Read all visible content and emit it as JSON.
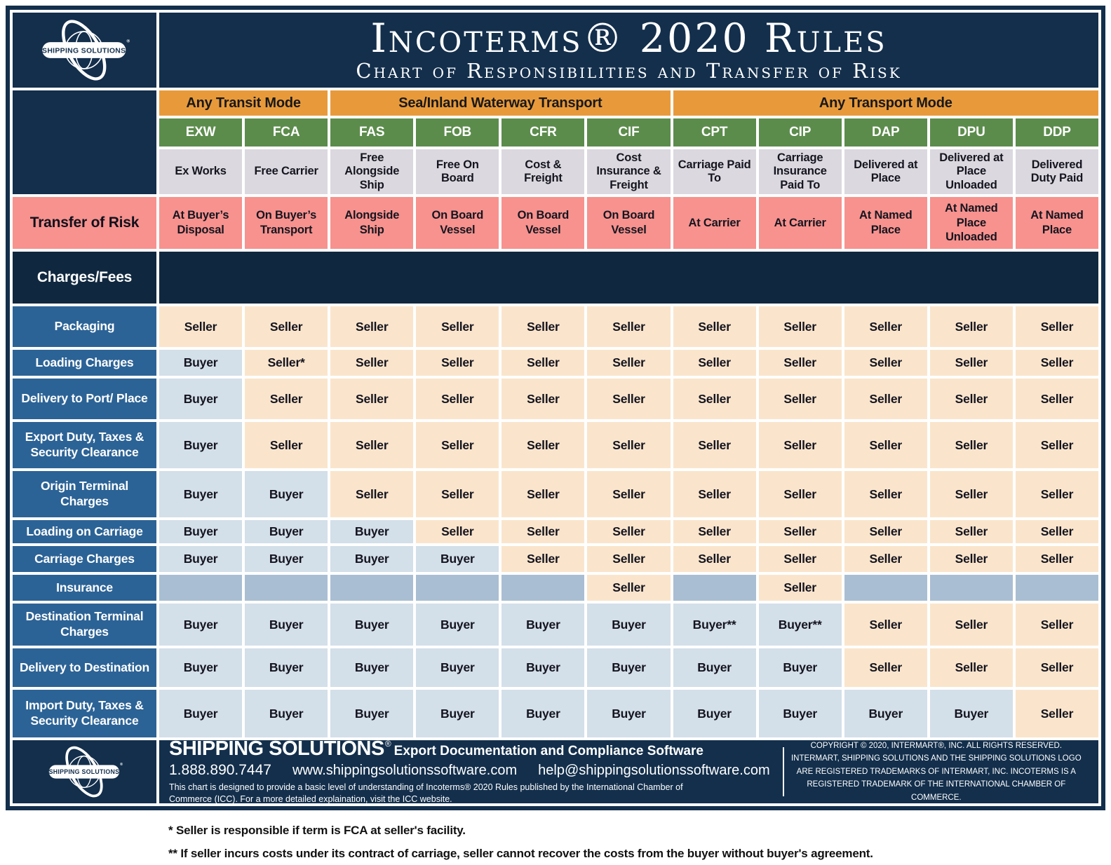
{
  "header": {
    "logo_text": "SHIPPING SOLUTIONS",
    "title": "Incoterms® 2020 Rules",
    "subtitle": "Chart of Responsibilities and Transfer of Risk"
  },
  "chart_data": {
    "type": "table",
    "title": "Incoterms® 2020 Rules — Chart of Responsibilities and Transfer of Risk",
    "transport_groups": [
      {
        "label": "Any Transit Mode",
        "span": 2
      },
      {
        "label": "Sea/Inland Waterway Transport",
        "span": 4
      },
      {
        "label": "Any Transport Mode",
        "span": 5
      }
    ],
    "codes": [
      "EXW",
      "FCA",
      "FAS",
      "FOB",
      "CFR",
      "CIF",
      "CPT",
      "CIP",
      "DAP",
      "DPU",
      "DDP"
    ],
    "names": [
      "Ex Works",
      "Free Carrier",
      "Free Alongside Ship",
      "Free On Board",
      "Cost & Freight",
      "Cost Insurance & Freight",
      "Carriage Paid To",
      "Carriage Insurance Paid To",
      "Delivered at Place",
      "Delivered at Place Unloaded",
      "Delivered Duty Paid"
    ],
    "risk_row": {
      "label": "Transfer of Risk",
      "cells": [
        "At Buyer’s Disposal",
        "On Buyer’s Transport",
        "Alongside Ship",
        "On Board Vessel",
        "On Board Vessel",
        "On Board Vessel",
        "At Carrier",
        "At Carrier",
        "At Named Place",
        "At Named Place Unloaded",
        "At Named Place"
      ]
    },
    "section_label": "Charges/Fees",
    "rows": [
      {
        "label": "Packaging",
        "cells": [
          "Seller",
          "Seller",
          "Seller",
          "Seller",
          "Seller",
          "Seller",
          "Seller",
          "Seller",
          "Seller",
          "Seller",
          "Seller"
        ]
      },
      {
        "label": "Loading Charges",
        "cells": [
          "Buyer",
          "Seller*",
          "Seller",
          "Seller",
          "Seller",
          "Seller",
          "Seller",
          "Seller",
          "Seller",
          "Seller",
          "Seller"
        ]
      },
      {
        "label": "Delivery to Port/ Place",
        "cells": [
          "Buyer",
          "Seller",
          "Seller",
          "Seller",
          "Seller",
          "Seller",
          "Seller",
          "Seller",
          "Seller",
          "Seller",
          "Seller"
        ]
      },
      {
        "label": "Export Duty, Taxes & Security Clearance",
        "cells": [
          "Buyer",
          "Seller",
          "Seller",
          "Seller",
          "Seller",
          "Seller",
          "Seller",
          "Seller",
          "Seller",
          "Seller",
          "Seller"
        ]
      },
      {
        "label": "Origin Terminal Charges",
        "cells": [
          "Buyer",
          "Buyer",
          "Seller",
          "Seller",
          "Seller",
          "Seller",
          "Seller",
          "Seller",
          "Seller",
          "Seller",
          "Seller"
        ]
      },
      {
        "label": "Loading on Carriage",
        "cells": [
          "Buyer",
          "Buyer",
          "Buyer",
          "Seller",
          "Seller",
          "Seller",
          "Seller",
          "Seller",
          "Seller",
          "Seller",
          "Seller"
        ]
      },
      {
        "label": "Carriage Charges",
        "cells": [
          "Buyer",
          "Buyer",
          "Buyer",
          "Buyer",
          "Seller",
          "Seller",
          "Seller",
          "Seller",
          "Seller",
          "Seller",
          "Seller"
        ]
      },
      {
        "label": "Insurance",
        "cells": [
          "",
          "",
          "",
          "",
          "",
          "Seller",
          "",
          "Seller",
          "",
          "",
          ""
        ]
      },
      {
        "label": "Destination Terminal Charges",
        "cells": [
          "Buyer",
          "Buyer",
          "Buyer",
          "Buyer",
          "Buyer",
          "Buyer",
          "Buyer**",
          "Buyer**",
          "Seller",
          "Seller",
          "Seller"
        ]
      },
      {
        "label": "Delivery to Destination",
        "cells": [
          "Buyer",
          "Buyer",
          "Buyer",
          "Buyer",
          "Buyer",
          "Buyer",
          "Buyer",
          "Buyer",
          "Seller",
          "Seller",
          "Seller"
        ]
      },
      {
        "label": "Import Duty, Taxes & Security Clearance",
        "cells": [
          "Buyer",
          "Buyer",
          "Buyer",
          "Buyer",
          "Buyer",
          "Buyer",
          "Buyer",
          "Buyer",
          "Buyer",
          "Buyer",
          "Seller"
        ]
      }
    ]
  },
  "footer": {
    "brand": "SHIPPING SOLUTIONS",
    "tagline": "Export Documentation and Compliance Software",
    "phone": "1.888.890.7447",
    "website": "www.shippingsolutionssoftware.com",
    "email": "help@shippingsolutionssoftware.com",
    "disclaimer": "This chart is designed to provide a basic level of understanding of Incoterms® 2020 Rules published by the International Chamber of Commerce (ICC). For a more detailed explaination, visit the ICC website.",
    "copyright": "COPYRIGHT © 2020, INTERMART®, INC. ALL RIGHTS RESERVED. INTERMART, SHIPPING SOLUTIONS AND THE SHIPPING SOLUTIONS LOGO ARE REGISTERED TRADEMARKS OF INTERMART, INC. INCOTERMS IS A REGISTERED TRADEMARK OF THE INTERNATIONAL CHAMBER OF COMMERCE."
  },
  "footnotes": [
    "* Seller is responsible if term is FCA at seller's facility.",
    "** If seller incurs costs under its contract of carriage, seller cannot recover the costs from the buyer without buyer's agreement."
  ],
  "colors": {
    "navy": "#132F4C",
    "orange": "#E89A3B",
    "green": "#5C8C4C",
    "lavender": "#DBD8DF",
    "salmon": "#F7928E",
    "row_label_blue": "#2C6396",
    "seller_bg": "#FAE5CC",
    "buyer_bg": "#D3DFE9",
    "insurance_bg": "#A9BED3"
  }
}
